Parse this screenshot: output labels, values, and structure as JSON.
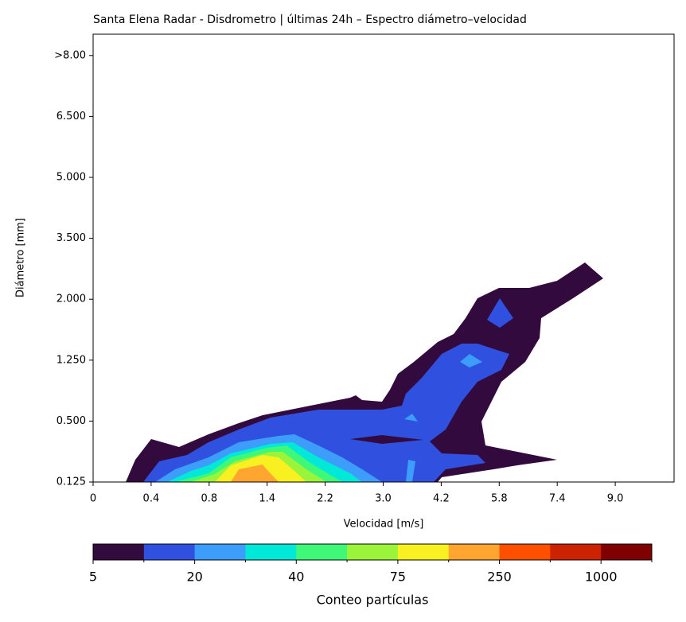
{
  "chart_data": {
    "type": "contour",
    "title": "Santa Elena Radar - Disdrometro | últimas 24h – Espectro diámetro–velocidad",
    "x_label": "Velocidad [m/s]",
    "y_label": "Diámetro [mm]",
    "x_categories": [
      "0",
      "0.4",
      "0.8",
      "1.4",
      "2.2",
      "3.0",
      "4.2",
      "5.8",
      "7.4",
      "9.0"
    ],
    "y_categories": [
      "0.125",
      "0.500",
      "1.250",
      "2.000",
      "3.500",
      "5.000",
      "6.500",
      ">8.00"
    ],
    "colorbar": {
      "label": "Conteo partículas",
      "colors": [
        "#330a3d",
        "#3050e0",
        "#3d9dfa",
        "#00e8d8",
        "#40f878",
        "#9af43a",
        "#f8f020",
        "#ffa530",
        "#ff5000",
        "#cc2200",
        "#800000"
      ],
      "ticks": [
        5,
        20,
        40,
        75,
        250,
        1000
      ]
    }
  }
}
